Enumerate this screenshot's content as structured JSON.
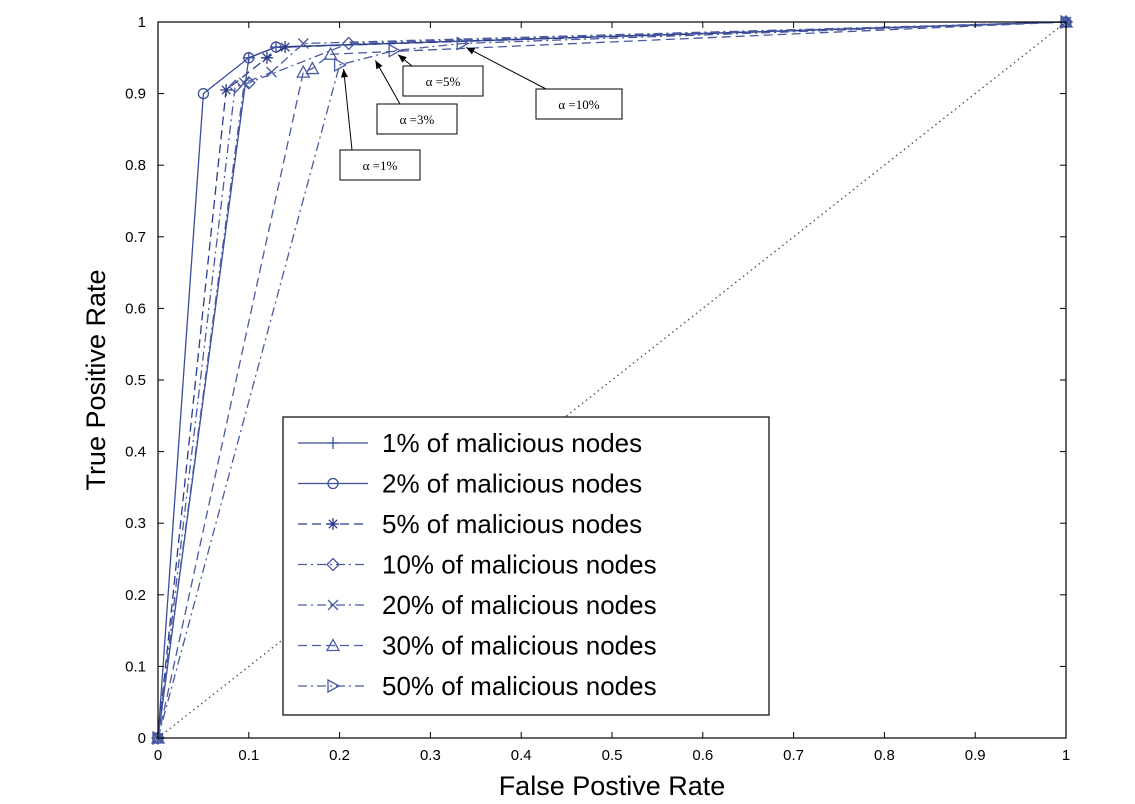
{
  "chart_data": {
    "type": "line",
    "title": "",
    "xlabel": "False Postive Rate",
    "ylabel": "True Positive Rate",
    "xlim": [
      0,
      1
    ],
    "ylim": [
      0,
      1
    ],
    "xticks": [
      "0",
      "0.1",
      "0.2",
      "0.3",
      "0.4",
      "0.5",
      "0.6",
      "0.7",
      "0.8",
      "0.9",
      "1"
    ],
    "yticks": [
      "0",
      "0.1",
      "0.2",
      "0.3",
      "0.4",
      "0.5",
      "0.6",
      "0.7",
      "0.8",
      "0.9",
      "1"
    ],
    "grid": false,
    "legend_position": "lower-center",
    "reference_line": {
      "x": [
        0,
        1
      ],
      "y": [
        0,
        1
      ],
      "style": "dotted"
    },
    "series": [
      {
        "name": "1% of malicious nodes",
        "marker": "plus",
        "dash": "solid",
        "color": "#3a4f9a",
        "x": [
          0,
          0.1,
          0.13,
          1
        ],
        "y": [
          0,
          0.95,
          0.965,
          1
        ]
      },
      {
        "name": "2% of malicious nodes",
        "marker": "circle",
        "dash": "solid",
        "color": "#3a4f9a",
        "x": [
          0,
          0.05,
          0.1,
          0.13,
          1
        ],
        "y": [
          0,
          0.9,
          0.95,
          0.965,
          1
        ]
      },
      {
        "name": "5% of malicious nodes",
        "marker": "star",
        "dash": "dashed",
        "color": "#2c3a8a",
        "x": [
          0,
          0.075,
          0.12,
          0.14,
          1
        ],
        "y": [
          0,
          0.905,
          0.95,
          0.965,
          1
        ]
      },
      {
        "name": "10% of malicious nodes",
        "marker": "diamond",
        "dash": "dashdot",
        "color": "#4a5aa0",
        "x": [
          0,
          0.085,
          0.1,
          0.21,
          1
        ],
        "y": [
          0,
          0.91,
          0.915,
          0.97,
          1
        ]
      },
      {
        "name": "20% of malicious nodes",
        "marker": "x",
        "dash": "dashdot",
        "color": "#4a5aa0",
        "x": [
          0,
          0.095,
          0.125,
          0.16,
          1
        ],
        "y": [
          0,
          0.915,
          0.93,
          0.97,
          1
        ]
      },
      {
        "name": "30% of malicious nodes",
        "marker": "triangle-up",
        "dash": "dashed",
        "color": "#4a5aa0",
        "x": [
          0,
          0.16,
          0.17,
          0.19,
          1
        ],
        "y": [
          0,
          0.93,
          0.935,
          0.955,
          1
        ]
      },
      {
        "name": "50% of malicious nodes",
        "marker": "triangle-right",
        "dash": "dashdot",
        "color": "#4a5aa0",
        "x": [
          0,
          0.2,
          0.26,
          0.335,
          1
        ],
        "y": [
          0,
          0.94,
          0.96,
          0.97,
          1
        ]
      }
    ],
    "annotations": [
      {
        "text": "α =1%",
        "x": 0.2,
        "y": 0.94
      },
      {
        "text": "α =3%",
        "x": 0.235,
        "y": 0.952
      },
      {
        "text": "α =5%",
        "x": 0.26,
        "y": 0.96
      },
      {
        "text": "α =10%",
        "x": 0.335,
        "y": 0.97
      }
    ]
  }
}
